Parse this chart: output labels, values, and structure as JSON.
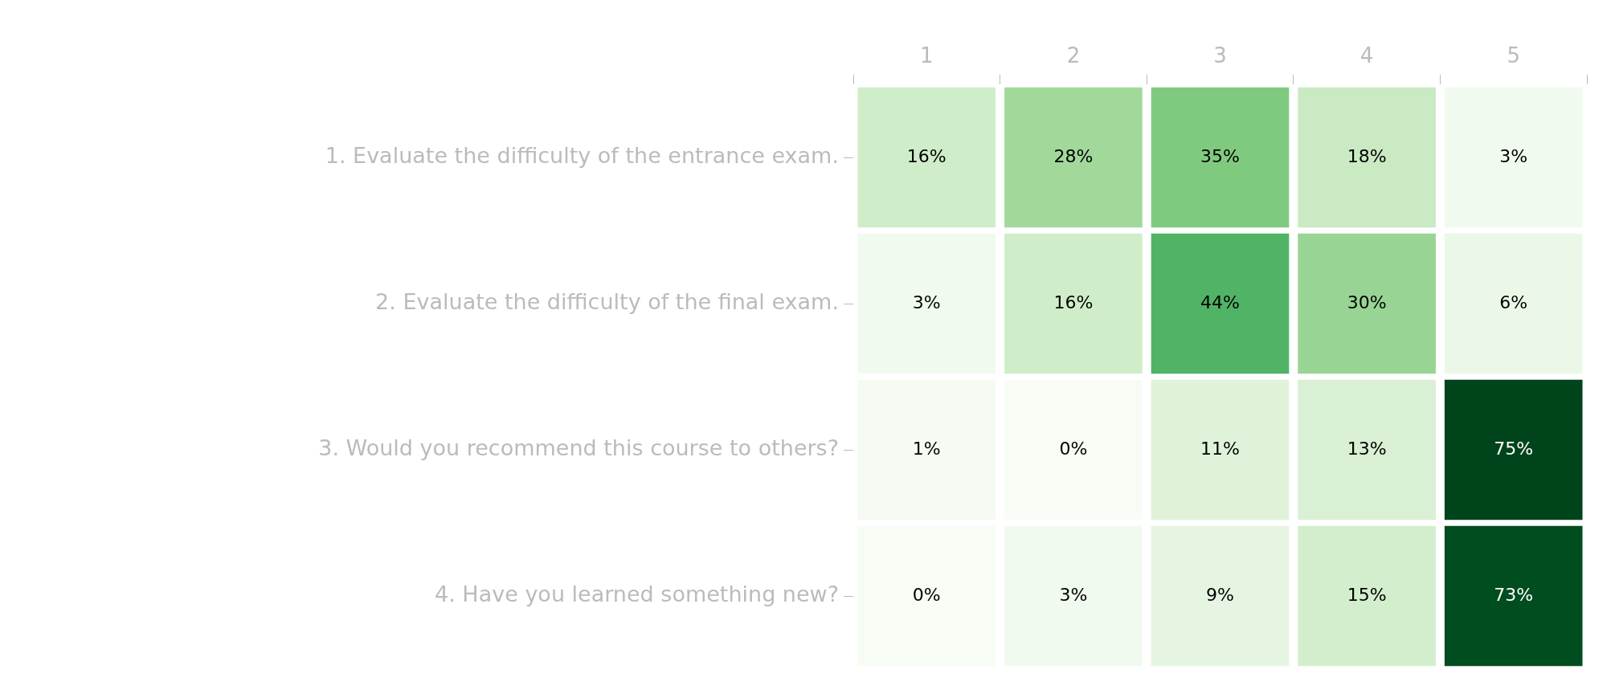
{
  "chart_data": {
    "type": "heatmap",
    "categories": [
      "1",
      "2",
      "3",
      "4",
      "5"
    ],
    "y_categories": [
      "1. Evaluate the difficulty of the entrance exam.",
      "2. Evaluate the difficulty of the final exam.",
      "3. Would you recommend this course to others?",
      "4. Have you learned something new?"
    ],
    "cells": [
      [
        16,
        28,
        35,
        18,
        3
      ],
      [
        3,
        16,
        44,
        30,
        6
      ],
      [
        1,
        0,
        11,
        13,
        75
      ],
      [
        0,
        3,
        9,
        15,
        73
      ]
    ],
    "cell_labels": [
      [
        "16%",
        "28%",
        "35%",
        "18%",
        "3%"
      ],
      [
        "3%",
        "16%",
        "44%",
        "30%",
        "6%"
      ],
      [
        "1%",
        "0%",
        "11%",
        "13%",
        "75%"
      ],
      [
        "0%",
        "3%",
        "9%",
        "15%",
        "73%"
      ]
    ]
  }
}
